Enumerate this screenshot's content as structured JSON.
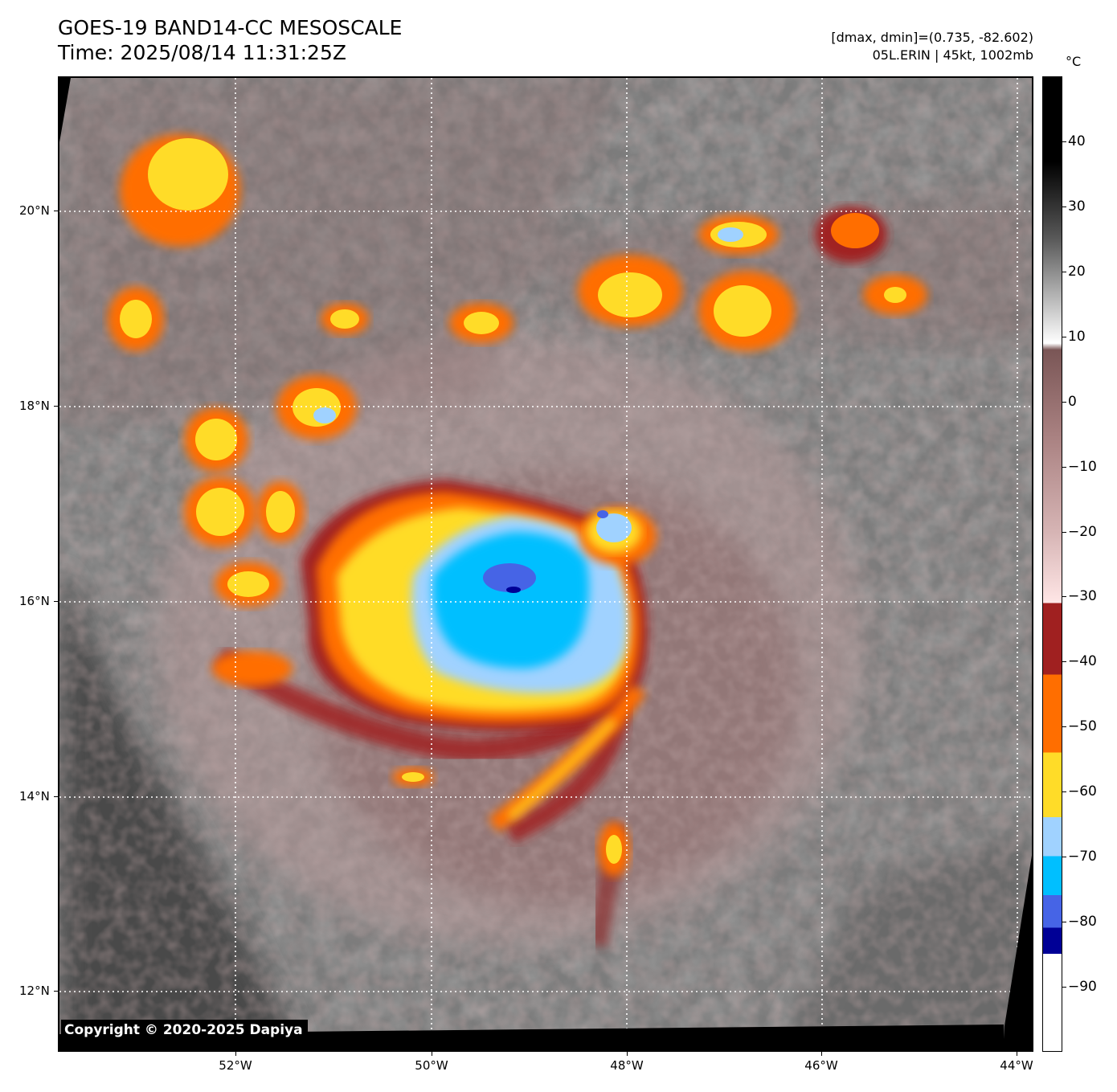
{
  "header": {
    "title_line1": "GOES-19 BAND14-CC MESOSCALE",
    "title_line2": "Time: 2025/08/14 11:31:25Z",
    "info_line1": "[dmax, dmin]=(0.735, -82.602)",
    "info_line2": "05L.ERIN | 45kt, 1002mb"
  },
  "map": {
    "latitude_labels": [
      "20°N",
      "18°N",
      "16°N",
      "14°N",
      "12°N"
    ],
    "longitude_labels": [
      "52°W",
      "50°W",
      "48°W",
      "46°W",
      "44°W"
    ],
    "copyright": "Copyright © 2020-2025 Dapiya",
    "storm": {
      "name": "05L.ERIN",
      "intensity_kt": 45,
      "pressure_mb": 1002
    }
  },
  "colorbar": {
    "unit": "°C",
    "tick_labels": [
      "40",
      "30",
      "20",
      "10",
      "0",
      "−10",
      "−20",
      "−30",
      "−40",
      "−50",
      "−60",
      "−70",
      "−80",
      "−90"
    ],
    "range": [
      -100,
      50
    ],
    "bands": [
      {
        "from": -100,
        "to": -85,
        "color": "#ffffff"
      },
      {
        "from": -85,
        "to": -81,
        "color": "#000096"
      },
      {
        "from": -81,
        "to": -76,
        "color": "#4664e6"
      },
      {
        "from": -76,
        "to": -70,
        "color": "#00bfff"
      },
      {
        "from": -70,
        "to": -64,
        "color": "#a0d2ff"
      },
      {
        "from": -64,
        "to": -54,
        "color": "#ffdc28"
      },
      {
        "from": -54,
        "to": -42,
        "color": "#ff6e00"
      },
      {
        "from": -42,
        "to": -31,
        "color": "#a02020"
      }
    ],
    "gradient_colors": [
      "#ffe6e6",
      "#d6b4b4",
      "#a88080",
      "#7a5656",
      "#ffffff",
      "#5a5a5a",
      "#000000"
    ]
  }
}
